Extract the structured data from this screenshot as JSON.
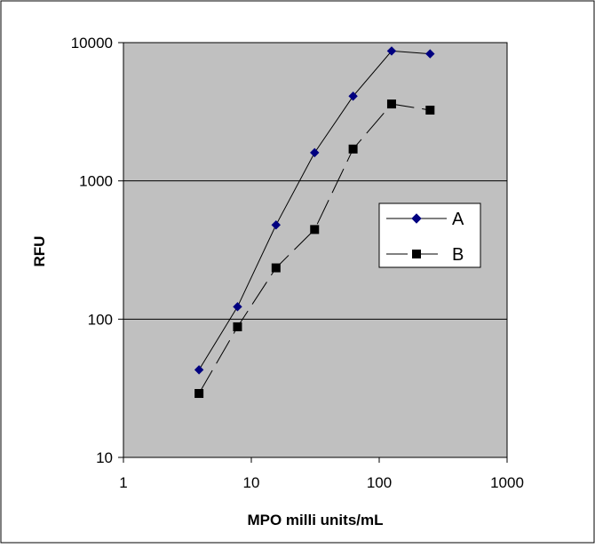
{
  "chart_data": {
    "type": "line",
    "xscale": "log",
    "yscale": "log",
    "xlabel": "MPO milli units/mL",
    "ylabel": "RFU",
    "xlim": [
      1,
      1000
    ],
    "ylim": [
      10,
      10000
    ],
    "xticks": [
      "1",
      "10",
      "100",
      "1000"
    ],
    "yticks": [
      "10",
      "100",
      "1000",
      "10000"
    ],
    "grid": "horizontal",
    "legend_position": "right",
    "plot_background": "#c0c0c0",
    "series": [
      {
        "name": "A",
        "color": "#000080",
        "marker": "diamond",
        "x": [
          3.9,
          7.8,
          15.6,
          31.25,
          62.5,
          125,
          250
        ],
        "y": [
          43,
          123,
          480,
          1600,
          4100,
          8700,
          8300
        ]
      },
      {
        "name": "B",
        "color": "#000000",
        "marker": "square",
        "line": "dashed",
        "x": [
          3.9,
          7.8,
          15.6,
          31.25,
          62.5,
          125,
          250
        ],
        "y": [
          29,
          88,
          235,
          445,
          1700,
          3600,
          3250
        ]
      }
    ]
  }
}
